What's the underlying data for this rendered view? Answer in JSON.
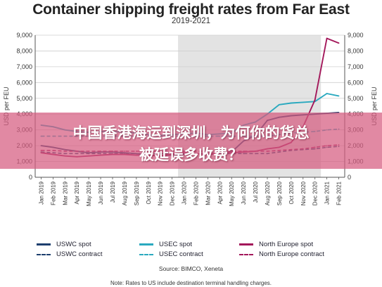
{
  "chart_data": {
    "type": "line",
    "title": "Container shipping freight rates from Far East",
    "subtitle": "2019-2021",
    "ylabel": "USD per FEU",
    "ylim": [
      0,
      9000
    ],
    "yticks": [
      "0",
      "1,000",
      "2,000",
      "3,000",
      "4,000",
      "5,000",
      "6,000",
      "7,000",
      "8,000",
      "9,000"
    ],
    "grid": true,
    "shaded_period": [
      "Jan 2020",
      "Dec 2020"
    ],
    "categories": [
      "Jan 2019",
      "Feb 2019",
      "Mar 2019",
      "Apr 2019",
      "May 2019",
      "Jun 2019",
      "Jul 2019",
      "Aug 2019",
      "Sep 2019",
      "Oct 2019",
      "Nov 2019",
      "Dec 2019",
      "Jan 2020",
      "Feb 2020",
      "Mar 2020",
      "Apr 2020",
      "May 2020",
      "Jun 2020",
      "Jul 2020",
      "Aug 2020",
      "Sep 2020",
      "Oct 2020",
      "Nov 2020",
      "Dec 2020",
      "Jan 2021",
      "Feb 2021"
    ],
    "series": [
      {
        "name": "USWC spot",
        "color": "#1d3f6e",
        "style": "solid",
        "values": [
          2000,
          1900,
          1750,
          1650,
          1550,
          1600,
          1600,
          1550,
          1500,
          1400,
          1350,
          1400,
          1450,
          1500,
          1450,
          1500,
          1600,
          2300,
          2650,
          3600,
          3800,
          3900,
          3950,
          4000,
          4050,
          4100
        ]
      },
      {
        "name": "USWC contract",
        "color": "#1d3f6e",
        "style": "dashed",
        "values": [
          1600,
          1550,
          1500,
          1500,
          1500,
          1500,
          1500,
          1500,
          1500,
          1500,
          1500,
          1500,
          1500,
          1500,
          1500,
          1500,
          1500,
          1500,
          1500,
          1500,
          1600,
          1700,
          1750,
          1800,
          1900,
          1950
        ]
      },
      {
        "name": "USEC spot",
        "color": "#2aa9bf",
        "style": "solid",
        "values": [
          3300,
          3200,
          3000,
          2900,
          2850,
          2900,
          2900,
          2850,
          2800,
          2700,
          2650,
          2700,
          2750,
          2800,
          2700,
          2750,
          2800,
          3300,
          3500,
          4000,
          4600,
          4700,
          4750,
          4800,
          5300,
          5150
        ]
      },
      {
        "name": "USEC contract",
        "color": "#2aa9bf",
        "style": "dashed",
        "values": [
          2600,
          2600,
          2600,
          2600,
          2600,
          2600,
          2600,
          2600,
          2600,
          2600,
          2600,
          2600,
          2600,
          2600,
          2600,
          2600,
          2600,
          2600,
          2600,
          2600,
          2700,
          2800,
          2850,
          2900,
          3000,
          3050
        ]
      },
      {
        "name": "North Europe spot",
        "color": "#a3175a",
        "style": "solid",
        "values": [
          1550,
          1450,
          1350,
          1300,
          1350,
          1400,
          1450,
          1450,
          1400,
          1400,
          1350,
          1450,
          1550,
          1500,
          1450,
          1550,
          1550,
          1600,
          1650,
          1800,
          1900,
          2200,
          3200,
          4900,
          8800,
          8500
        ]
      },
      {
        "name": "North Europe contract",
        "color": "#a3175a",
        "style": "dashed",
        "values": [
          1700,
          1700,
          1650,
          1650,
          1650,
          1650,
          1650,
          1650,
          1650,
          1650,
          1650,
          1650,
          1650,
          1650,
          1650,
          1650,
          1650,
          1650,
          1650,
          1650,
          1700,
          1750,
          1800,
          1900,
          2000,
          2050
        ]
      }
    ]
  },
  "legend_entries": [
    "USWC spot",
    "USEC spot",
    "North Europe spot",
    "USWC contract",
    "USEC contract",
    "North Europe contract"
  ],
  "source_note": "Source: BIMCO, Xeneta",
  "footnote": "Note: Rates to US include destination terminal handling charges.",
  "banner": {
    "line1": "中国香港海运到深圳，为何你的货总",
    "line2": "被延误多收费？"
  }
}
